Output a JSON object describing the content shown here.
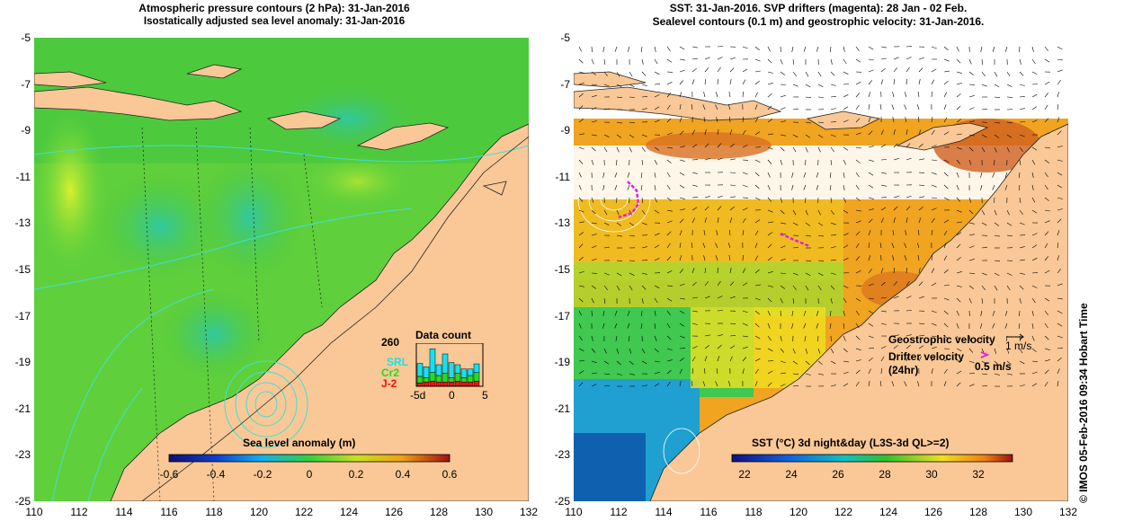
{
  "left_panel": {
    "title_line1": "Atmospheric pressure contours (2 hPa): 31-Jan-2016",
    "title_line2": "Isostatically adjusted sea level anomaly: 31-Jan-2016",
    "y_ticks": [
      "-5",
      "-7",
      "-9",
      "-11",
      "-13",
      "-15",
      "-17",
      "-19",
      "-21",
      "-23",
      "-25"
    ],
    "x_ticks": [
      "110",
      "112",
      "114",
      "116",
      "118",
      "120",
      "122",
      "124",
      "126",
      "128",
      "130",
      "132"
    ],
    "colorbar_title": "Sea level anomaly (m)",
    "colorbar_ticks": [
      "-0.6",
      "-0.4",
      "-0.2",
      "0",
      "0.2",
      "0.4",
      "0.6"
    ],
    "inset": {
      "title": "Data count",
      "y_max_label": "260",
      "x_ticks": [
        "-5d",
        "0",
        "5"
      ],
      "legend": [
        {
          "label": "SRL",
          "color": "#19e0f0"
        },
        {
          "label": "Cr2",
          "color": "#22dd22"
        },
        {
          "label": "J-2",
          "color": "#ee1111"
        }
      ],
      "bars": [
        {
          "j2": 0.08,
          "cr2": 0.15,
          "srl": 0.3
        },
        {
          "j2": 0.1,
          "cr2": 0.1,
          "srl": 0.25
        },
        {
          "j2": 0.12,
          "cr2": 0.2,
          "srl": 0.55
        },
        {
          "j2": 0.1,
          "cr2": 0.15,
          "srl": 0.25
        },
        {
          "j2": 0.1,
          "cr2": 0.2,
          "srl": 0.45
        },
        {
          "j2": 0.1,
          "cr2": 0.1,
          "srl": 0.35
        },
        {
          "j2": 0.12,
          "cr2": 0.18,
          "srl": 0.2
        },
        {
          "j2": 0.1,
          "cr2": 0.1,
          "srl": 0.2
        },
        {
          "j2": 0.1,
          "cr2": 0.15,
          "srl": 0.15
        },
        {
          "j2": 0.12,
          "cr2": 0.2,
          "srl": 0.2
        }
      ]
    }
  },
  "right_panel": {
    "title_line1": "SST: 31-Jan-2016. SVP drifters (magenta): 28 Jan - 02 Feb.",
    "title_line2": "Sealevel contours (0.1 m) and geostrophic velocity: 31-Jan-2016.",
    "y_ticks": [
      "-5",
      "-7",
      "-9",
      "-11",
      "-13",
      "-15",
      "-17",
      "-19",
      "-21",
      "-23",
      "-25"
    ],
    "x_ticks": [
      "110",
      "112",
      "114",
      "116",
      "118",
      "120",
      "122",
      "124",
      "126",
      "128",
      "130",
      "132"
    ],
    "colorbar_title": "SST (°C) 3d night&day (L3S-3d QL>=2)",
    "colorbar_ticks": [
      "22",
      "24",
      "26",
      "28",
      "30",
      "32"
    ],
    "legend": {
      "geo_label": "Geostrophic velocity",
      "geo_scale": "1 m/s",
      "drifter_label": "Drifter velocity",
      "drifter_sub": "(24hr)",
      "drifter_scale": "0.5 m/s"
    }
  },
  "colors": {
    "land": "#f9c896",
    "ocean_green": "#55d23c",
    "contour_cyan": "#3fe0d8",
    "drifter": "#e020e0",
    "sst_orange": "#f0a020"
  },
  "credit": "© IMOS 05-Feb-2016 09:34 Hobart Time"
}
